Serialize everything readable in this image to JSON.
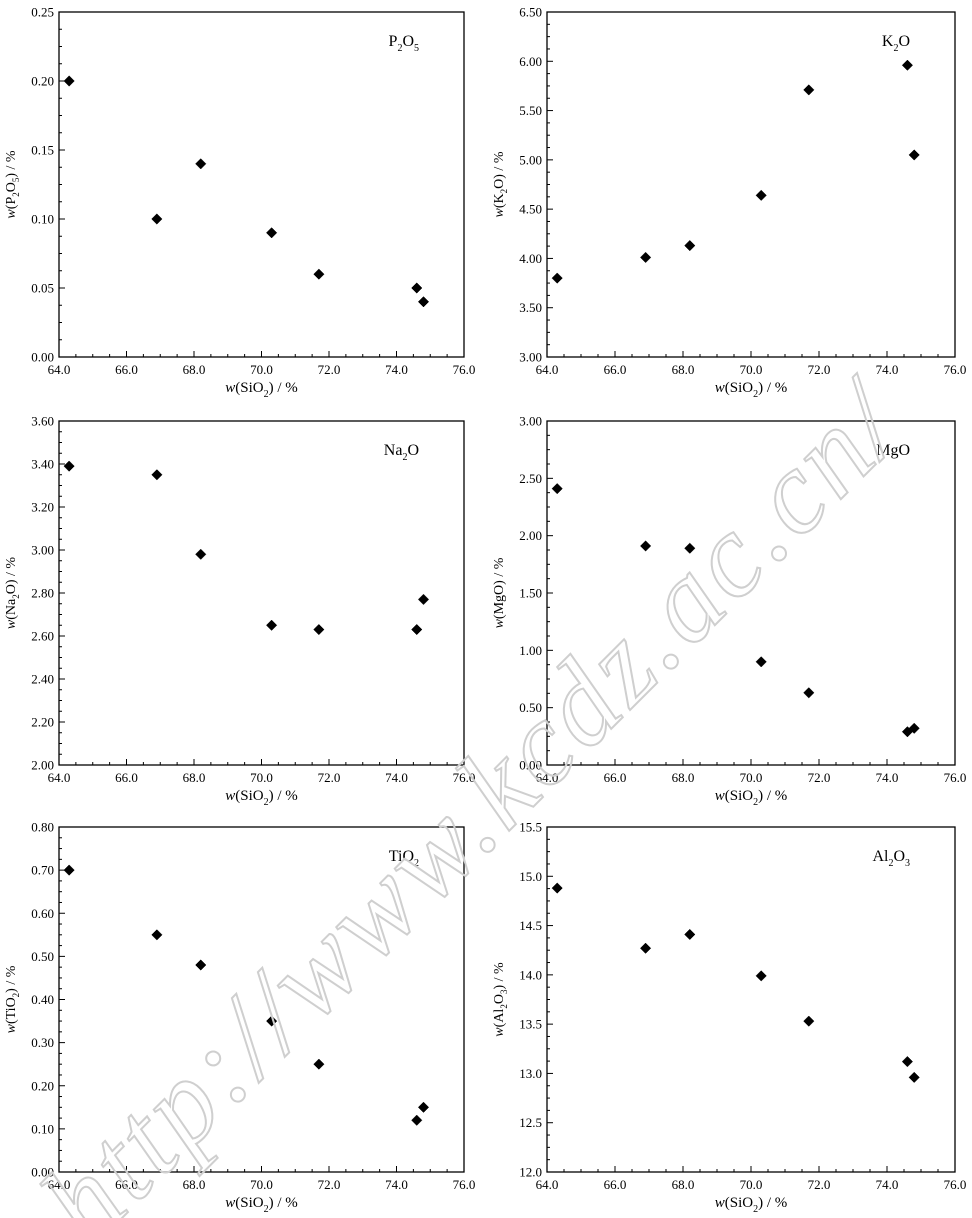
{
  "watermark": "http://www.kcdz.ac.cn/",
  "chart_data": [
    {
      "type": "scatter",
      "label_main": "P",
      "label_sub1": "2",
      "label_mid": "O",
      "label_sub2": "5",
      "ylabel_pre": "w",
      "ylabel_main": "(P",
      "ylabel_sub1": "2",
      "ylabel_mid": "O",
      "ylabel_sub2": "5",
      "ylabel_post": ") / %",
      "xlabel_pre": "w",
      "xlabel_main": "(SiO",
      "xlabel_sub": "2",
      "xlabel_post": ") / %",
      "xlim": [
        64.0,
        76.0
      ],
      "ylim": [
        0.0,
        0.25
      ],
      "xticks": [
        "64.0",
        "66.0",
        "68.0",
        "70.0",
        "72.0",
        "74.0",
        "76.0"
      ],
      "yticks": [
        "0.00",
        "0.05",
        "0.10",
        "0.15",
        "0.20",
        "0.25"
      ],
      "x": [
        64.3,
        66.9,
        68.2,
        70.3,
        71.7,
        74.6,
        74.8
      ],
      "y": [
        0.2,
        0.1,
        0.14,
        0.09,
        0.06,
        0.05,
        0.04
      ]
    },
    {
      "type": "scatter",
      "label_main": "K",
      "label_sub1": "2",
      "label_mid": "O",
      "label_sub2": "",
      "ylabel_pre": "w",
      "ylabel_main": "(K",
      "ylabel_sub1": "2",
      "ylabel_mid": "O",
      "ylabel_sub2": "",
      "ylabel_post": ") / %",
      "xlabel_pre": "w",
      "xlabel_main": "(SiO",
      "xlabel_sub": "2",
      "xlabel_post": ") / %",
      "xlim": [
        64.0,
        76.0
      ],
      "ylim": [
        3.0,
        6.5
      ],
      "xticks": [
        "64.0",
        "66.0",
        "68.0",
        "70.0",
        "72.0",
        "74.0",
        "76.0"
      ],
      "yticks": [
        "3.00",
        "3.50",
        "4.00",
        "4.50",
        "5.00",
        "5.50",
        "6.00",
        "6.50"
      ],
      "x": [
        64.3,
        66.9,
        68.2,
        70.3,
        71.7,
        74.6,
        74.8
      ],
      "y": [
        3.8,
        4.01,
        4.13,
        4.64,
        5.71,
        5.96,
        5.05
      ]
    },
    {
      "type": "scatter",
      "label_main": "Na",
      "label_sub1": "2",
      "label_mid": "O",
      "label_sub2": "",
      "ylabel_pre": "w",
      "ylabel_main": "(Na",
      "ylabel_sub1": "2",
      "ylabel_mid": "O",
      "ylabel_sub2": "",
      "ylabel_post": ") / %",
      "xlabel_pre": "w",
      "xlabel_main": "(SiO",
      "xlabel_sub": "2",
      "xlabel_post": ") / %",
      "xlim": [
        64.0,
        76.0
      ],
      "ylim": [
        2.0,
        3.6
      ],
      "xticks": [
        "64.0",
        "66.0",
        "68.0",
        "70.0",
        "72.0",
        "74.0",
        "76.0"
      ],
      "yticks": [
        "2.00",
        "2.20",
        "2.40",
        "2.60",
        "2.80",
        "3.00",
        "3.20",
        "3.40",
        "3.60"
      ],
      "x": [
        64.3,
        66.9,
        68.2,
        70.3,
        71.7,
        74.6,
        74.8
      ],
      "y": [
        3.39,
        3.35,
        2.98,
        2.65,
        2.63,
        2.63,
        2.77
      ]
    },
    {
      "type": "scatter",
      "label_main": "MgO",
      "label_sub1": "",
      "label_mid": "",
      "label_sub2": "",
      "ylabel_pre": "w",
      "ylabel_main": "(MgO",
      "ylabel_sub1": "",
      "ylabel_mid": "",
      "ylabel_sub2": "",
      "ylabel_post": ") / %",
      "xlabel_pre": "w",
      "xlabel_main": "(SiO",
      "xlabel_sub": "2",
      "xlabel_post": ") / %",
      "xlim": [
        64.0,
        76.0
      ],
      "ylim": [
        0.0,
        3.0
      ],
      "xticks": [
        "64.0",
        "66.0",
        "68.0",
        "70.0",
        "72.0",
        "74.0",
        "76.0"
      ],
      "yticks": [
        "0.00",
        "0.50",
        "1.00",
        "1.50",
        "2.00",
        "2.50",
        "3.00"
      ],
      "x": [
        64.3,
        66.9,
        68.2,
        70.3,
        71.7,
        74.6,
        74.8
      ],
      "y": [
        2.41,
        1.91,
        1.89,
        0.9,
        0.63,
        0.29,
        0.32
      ]
    },
    {
      "type": "scatter",
      "label_main": "TiO",
      "label_sub1": "2",
      "label_mid": "",
      "label_sub2": "",
      "ylabel_pre": "w",
      "ylabel_main": "(TiO",
      "ylabel_sub1": "2",
      "ylabel_mid": "",
      "ylabel_sub2": "",
      "ylabel_post": ") / %",
      "xlabel_pre": "w",
      "xlabel_main": "(SiO",
      "xlabel_sub": "2",
      "xlabel_post": ") / %",
      "xlim": [
        64.0,
        76.0
      ],
      "ylim": [
        0.0,
        0.8
      ],
      "xticks": [
        "64.0",
        "66.0",
        "68.0",
        "70.0",
        "72.0",
        "74.0",
        "76.0"
      ],
      "yticks": [
        "0.00",
        "0.10",
        "0.20",
        "0.30",
        "0.40",
        "0.50",
        "0.60",
        "0.70",
        "0.80"
      ],
      "x": [
        64.3,
        66.9,
        68.2,
        70.3,
        71.7,
        74.6,
        74.8
      ],
      "y": [
        0.7,
        0.55,
        0.48,
        0.35,
        0.25,
        0.12,
        0.15
      ]
    },
    {
      "type": "scatter",
      "label_main": "Al",
      "label_sub1": "2",
      "label_mid": "O",
      "label_sub2": "3",
      "ylabel_pre": "w",
      "ylabel_main": "(Al",
      "ylabel_sub1": "2",
      "ylabel_mid": "O",
      "ylabel_sub2": "3",
      "ylabel_post": ") / %",
      "xlabel_pre": "w",
      "xlabel_main": "(SiO",
      "xlabel_sub": "2",
      "xlabel_post": ") / %",
      "xlim": [
        64.0,
        76.0
      ],
      "ylim": [
        12.0,
        15.5
      ],
      "xticks": [
        "64.0",
        "66.0",
        "68.0",
        "70.0",
        "72.0",
        "74.0",
        "76.0"
      ],
      "yticks": [
        "12.0",
        "12.5",
        "13.0",
        "13.5",
        "14.0",
        "14.5",
        "15.0",
        "15.5"
      ],
      "x": [
        64.3,
        66.9,
        68.2,
        70.3,
        71.7,
        74.6,
        74.8
      ],
      "y": [
        14.88,
        14.27,
        14.41,
        13.99,
        13.53,
        13.12,
        12.96
      ]
    }
  ]
}
